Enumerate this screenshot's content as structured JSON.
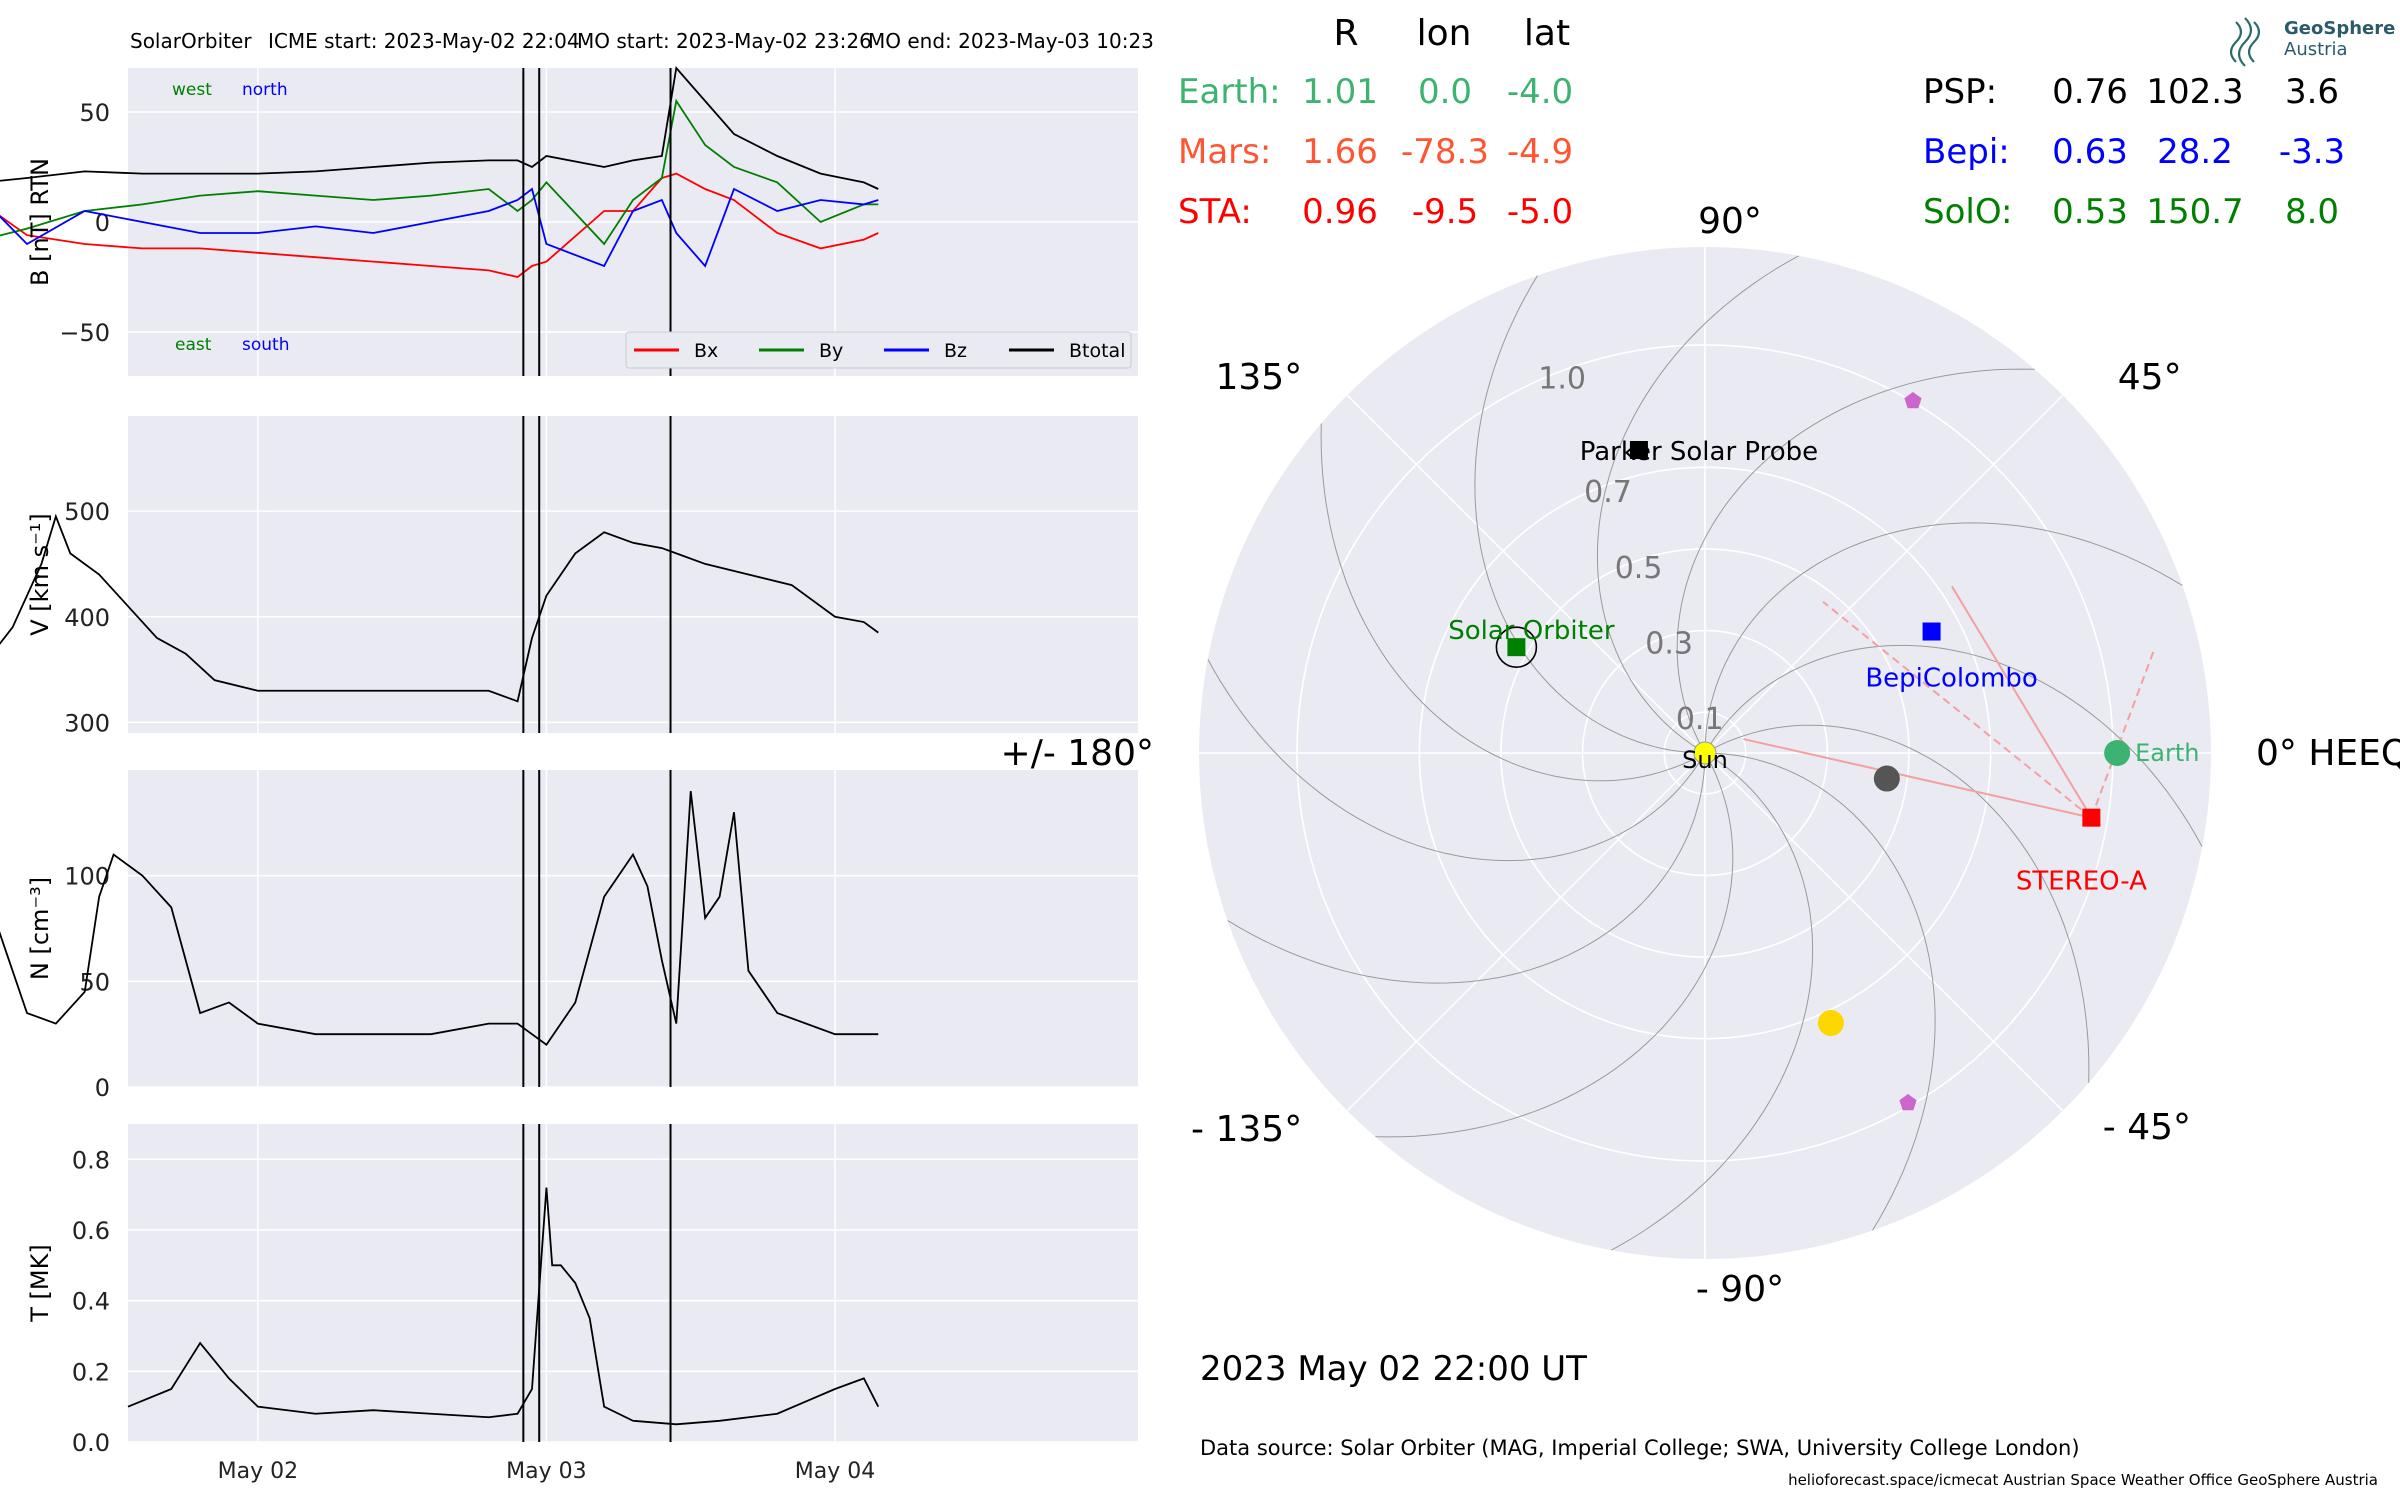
{
  "header": {
    "spacecraft": "SolarOrbiter",
    "icme_start": "ICME start: 2023-May-02 22:04",
    "mo_start": "MO start: 2023-May-02 23:26",
    "mo_end": "MO end: 2023-May-03 10:23"
  },
  "logo": {
    "line1": "GeoSphere",
    "line2": "Austria"
  },
  "positions_table": {
    "headers": [
      "R",
      "lon",
      "lat"
    ],
    "left": [
      {
        "name": "Earth:",
        "r": "1.01",
        "lon": "0.0",
        "lat": "-4.0",
        "color": "#3cb371"
      },
      {
        "name": "Mars:",
        "r": "1.66",
        "lon": "-78.3",
        "lat": "-4.9",
        "color": "#ff5533"
      },
      {
        "name": "STA:",
        "r": "0.96",
        "lon": "-9.5",
        "lat": "-5.0",
        "color": "#ff0000"
      }
    ],
    "right": [
      {
        "name": "PSP:",
        "r": "0.76",
        "lon": "102.3",
        "lat": "3.6",
        "color": "#000000"
      },
      {
        "name": "Bepi:",
        "r": "0.63",
        "lon": "28.2",
        "lat": "-3.3",
        "color": "#0000ff"
      },
      {
        "name": "SolO:",
        "r": "0.53",
        "lon": "150.7",
        "lat": "8.0",
        "color": "#008000"
      }
    ]
  },
  "timestamp": "2023 May 02  22:00 UT",
  "data_source": "Data source: Solar Orbiter (MAG, Imperial College; SWA, University College London)",
  "credits": "helioforecast.space/icmecat   Austrian Space Weather Office   GeoSphere Austria",
  "chart_data": [
    {
      "type": "line",
      "id": "b-field",
      "ylabel": "B [nT] RTN",
      "ylim": [
        -70,
        70
      ],
      "yticks": [
        "50",
        "0",
        "−50"
      ],
      "ytick_values": [
        50,
        0,
        -50
      ],
      "annotations": {
        "west": "west",
        "north": "north",
        "east": "east",
        "south": "south"
      },
      "legend": [
        "Bx",
        "By",
        "Bz",
        "Btotal"
      ],
      "legend_placement": "bottom-right",
      "series": [
        {
          "name": "Bx",
          "color": "#ff0000",
          "x": [
            1.05,
            1.2,
            1.4,
            1.6,
            1.8,
            2.0,
            2.2,
            2.4,
            2.6,
            2.8,
            2.9,
            2.95,
            3.0,
            3.2,
            3.3,
            3.4,
            3.45,
            3.55,
            3.65,
            3.8,
            3.95,
            4.1,
            4.15
          ],
          "y": [
            8,
            -6,
            -10,
            -12,
            -12,
            -14,
            -16,
            -18,
            -20,
            -22,
            -25,
            -20,
            -18,
            5,
            5,
            20,
            22,
            15,
            10,
            -5,
            -12,
            -8,
            -5
          ]
        },
        {
          "name": "By",
          "color": "#008000",
          "x": [
            1.05,
            1.2,
            1.4,
            1.6,
            1.8,
            2.0,
            2.2,
            2.4,
            2.6,
            2.8,
            2.9,
            2.95,
            3.0,
            3.2,
            3.3,
            3.4,
            3.45,
            3.55,
            3.65,
            3.8,
            3.95,
            4.1,
            4.15
          ],
          "y": [
            -8,
            -3,
            5,
            8,
            12,
            14,
            12,
            10,
            12,
            15,
            5,
            10,
            18,
            -10,
            10,
            20,
            55,
            35,
            25,
            18,
            0,
            8,
            8
          ]
        },
        {
          "name": "Bz",
          "color": "#0000ff",
          "x": [
            1.05,
            1.2,
            1.4,
            1.6,
            1.8,
            2.0,
            2.2,
            2.4,
            2.6,
            2.8,
            2.9,
            2.95,
            3.0,
            3.2,
            3.3,
            3.4,
            3.45,
            3.55,
            3.65,
            3.8,
            3.95,
            4.1,
            4.15
          ],
          "y": [
            10,
            -10,
            5,
            0,
            -5,
            -5,
            -2,
            -5,
            0,
            5,
            10,
            15,
            -10,
            -20,
            5,
            10,
            -5,
            -20,
            15,
            5,
            10,
            8,
            10
          ]
        },
        {
          "name": "Btotal",
          "color": "#000000",
          "x": [
            1.05,
            1.2,
            1.4,
            1.6,
            1.8,
            2.0,
            2.2,
            2.4,
            2.6,
            2.8,
            2.9,
            2.95,
            3.0,
            3.2,
            3.3,
            3.4,
            3.45,
            3.55,
            3.65,
            3.8,
            3.95,
            4.1,
            4.15
          ],
          "y": [
            18,
            20,
            23,
            22,
            22,
            22,
            23,
            25,
            27,
            28,
            28,
            25,
            30,
            25,
            28,
            30,
            70,
            55,
            40,
            30,
            22,
            18,
            15
          ]
        }
      ]
    },
    {
      "type": "line",
      "id": "velocity",
      "ylabel": "V [km s⁻¹]",
      "ylim": [
        290,
        590
      ],
      "yticks": [
        "500",
        "400",
        "300"
      ],
      "ytick_values": [
        500,
        400,
        300
      ],
      "series": [
        {
          "name": "",
          "color": "#000000",
          "x": [
            1.05,
            1.15,
            1.25,
            1.3,
            1.35,
            1.45,
            1.55,
            1.65,
            1.75,
            1.85,
            2.0,
            2.2,
            2.4,
            2.6,
            2.8,
            2.9,
            2.95,
            3.0,
            3.1,
            3.2,
            3.3,
            3.4,
            3.45,
            3.55,
            3.7,
            3.85,
            4.0,
            4.1,
            4.15
          ],
          "y": [
            355,
            390,
            450,
            495,
            460,
            440,
            410,
            380,
            365,
            340,
            330,
            330,
            330,
            330,
            330,
            320,
            380,
            420,
            460,
            480,
            470,
            465,
            460,
            450,
            440,
            430,
            400,
            395,
            385
          ]
        }
      ]
    },
    {
      "type": "line",
      "id": "density",
      "ylabel": "N [cm⁻³]",
      "ylim": [
        0,
        150
      ],
      "yticks": [
        "100",
        "50",
        "0"
      ],
      "ytick_values": [
        100,
        50,
        0
      ],
      "series": [
        {
          "name": "",
          "color": "#000000",
          "x": [
            1.05,
            1.1,
            1.2,
            1.3,
            1.4,
            1.45,
            1.5,
            1.6,
            1.7,
            1.8,
            1.9,
            2.0,
            2.2,
            2.4,
            2.6,
            2.8,
            2.9,
            2.95,
            3.0,
            3.1,
            3.2,
            3.3,
            3.35,
            3.4,
            3.45,
            3.5,
            3.55,
            3.6,
            3.65,
            3.7,
            3.8,
            4.0,
            4.15
          ],
          "y": [
            50,
            75,
            35,
            30,
            45,
            90,
            110,
            100,
            85,
            35,
            40,
            30,
            25,
            25,
            25,
            30,
            30,
            25,
            20,
            40,
            90,
            110,
            95,
            60,
            30,
            140,
            80,
            90,
            130,
            55,
            35,
            25,
            25
          ]
        }
      ]
    },
    {
      "type": "line",
      "id": "temperature",
      "ylabel": "T [MK]",
      "ylim": [
        0,
        0.9
      ],
      "yticks": [
        "0.8",
        "0.6",
        "0.4",
        "0.2",
        "0.0"
      ],
      "ytick_values": [
        0.8,
        0.6,
        0.4,
        0.2,
        0.0
      ],
      "xticks": [
        "May 02",
        "May 03",
        "May 04"
      ],
      "xtick_values": [
        2,
        3,
        4
      ],
      "xlim": [
        1.55,
        5.05
      ],
      "series": [
        {
          "name": "",
          "color": "#000000",
          "x": [
            1.55,
            1.7,
            1.8,
            1.9,
            2.0,
            2.2,
            2.4,
            2.6,
            2.8,
            2.9,
            2.95,
            3.0,
            3.02,
            3.05,
            3.1,
            3.15,
            3.2,
            3.3,
            3.45,
            3.6,
            3.8,
            4.0,
            4.1,
            4.15
          ],
          "y": [
            0.1,
            0.15,
            0.28,
            0.18,
            0.1,
            0.08,
            0.09,
            0.08,
            0.07,
            0.08,
            0.15,
            0.72,
            0.5,
            0.5,
            0.45,
            0.35,
            0.1,
            0.06,
            0.05,
            0.06,
            0.08,
            0.15,
            0.18,
            0.1
          ]
        }
      ]
    },
    {
      "type": "scatter",
      "id": "heeq-polar",
      "coordinate_system": "polar",
      "angle_labels": [
        {
          "deg": 0,
          "text": "0° HEEQ"
        },
        {
          "deg": 45,
          "text": "45°"
        },
        {
          "deg": 90,
          "text": "90°"
        },
        {
          "deg": 135,
          "text": "135°"
        },
        {
          "deg": 180,
          "text": "+/- 180°"
        },
        {
          "deg": -135,
          "text": "- 135°"
        },
        {
          "deg": -90,
          "text": "- 90°"
        },
        {
          "deg": -45,
          "text": "- 45°"
        }
      ],
      "radial_labels": [
        "0.1",
        "0.3",
        "0.5",
        "0.7",
        "1.0"
      ],
      "radial_values": [
        0.1,
        0.3,
        0.5,
        0.7,
        1.0
      ],
      "rmax": 1.24,
      "points": [
        {
          "name": "Sun",
          "label": "Sun",
          "r": 0,
          "lon": 0,
          "color": "#ffff00",
          "marker": "circle"
        },
        {
          "name": "Earth",
          "label": "Earth",
          "r": 1.01,
          "lon": 0.0,
          "color": "#3cb371",
          "marker": "circle"
        },
        {
          "name": "STEREO-A",
          "label": "STEREO-A",
          "r": 0.96,
          "lon": -9.5,
          "color": "#ff0000",
          "marker": "square"
        },
        {
          "name": "Parker Solar Probe",
          "label": "Parker Solar Probe",
          "r": 0.76,
          "lon": 102.3,
          "color": "#000000",
          "marker": "square"
        },
        {
          "name": "BepiColombo",
          "label": "BepiColombo",
          "r": 0.63,
          "lon": 28.2,
          "color": "#0000ff",
          "marker": "square"
        },
        {
          "name": "Solar Orbiter",
          "label": "Solar Orbiter",
          "r": 0.53,
          "lon": 150.7,
          "color": "#008000",
          "marker": "square"
        },
        {
          "name": "Mercury",
          "label": "",
          "r": 0.45,
          "lon": -8,
          "color": "#555555",
          "marker": "circle"
        },
        {
          "name": "Venus",
          "label": "",
          "r": 0.73,
          "lon": -65,
          "color": "#ffd700",
          "marker": "circle"
        },
        {
          "name": "Mars",
          "label": "",
          "r": 1.66,
          "lon": -78.3,
          "color": "#cc66cc",
          "marker": "pentagon"
        }
      ]
    }
  ]
}
